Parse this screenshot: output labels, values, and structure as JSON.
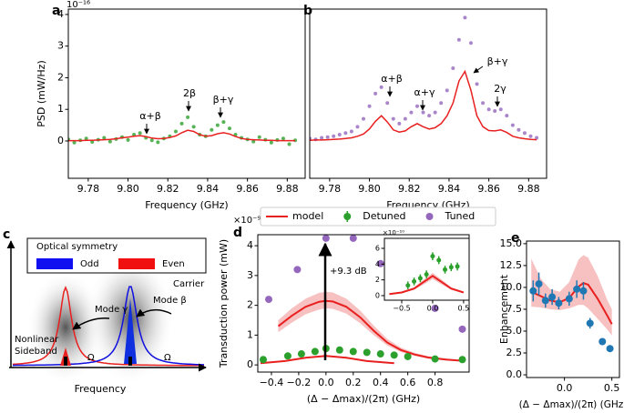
{
  "chart_data": [
    {
      "panel": "a",
      "type": "scatter",
      "xlabel": "Frequency (GHz)",
      "ylabel": "PSD (mW/Hz)",
      "offset": "10⁻¹⁶",
      "xlim": [
        9.77,
        9.889
      ],
      "ylim": [
        -1.18,
        4.17
      ],
      "xticks": [
        9.78,
        {
          "value": 9.8,
          "label": "9.80"
        },
        9.82,
        9.84,
        9.86,
        9.88
      ],
      "yticks": [
        0,
        1,
        2,
        3,
        4
      ],
      "series": [
        {
          "kind": "scatter",
          "color": "#2ca02c",
          "x": [
            9.77,
            9.773,
            9.776,
            9.779,
            9.782,
            9.785,
            9.788,
            9.791,
            9.794,
            9.797,
            9.8,
            9.803,
            9.806,
            9.809,
            9.812,
            9.815,
            9.818,
            9.821,
            9.824,
            9.827,
            9.83,
            9.833,
            9.836,
            9.839,
            9.842,
            9.845,
            9.848,
            9.851,
            9.854,
            9.857,
            9.86,
            9.863,
            9.866,
            9.869,
            9.872,
            9.875,
            9.878,
            9.881,
            9.884
          ],
          "values": [
            0.05,
            -0.05,
            0.02,
            0.08,
            -0.03,
            0.04,
            0.1,
            -0.02,
            0.06,
            0.12,
            0.03,
            0.2,
            0.25,
            0.1,
            0.02,
            -0.04,
            0.08,
            0.15,
            0.3,
            0.55,
            0.75,
            0.45,
            0.2,
            0.15,
            0.35,
            0.5,
            0.6,
            0.4,
            0.2,
            0.1,
            0.05,
            -0.02,
            0.12,
            0.04,
            -0.05,
            0.03,
            0.08,
            -0.1,
            0.02
          ]
        },
        {
          "kind": "line",
          "color": "#e8201f",
          "x": [
            9.77,
            9.773,
            9.776,
            9.779,
            9.782,
            9.785,
            9.788,
            9.791,
            9.794,
            9.797,
            9.8,
            9.803,
            9.806,
            9.809,
            9.812,
            9.815,
            9.818,
            9.821,
            9.824,
            9.827,
            9.83,
            9.833,
            9.836,
            9.839,
            9.842,
            9.845,
            9.848,
            9.851,
            9.854,
            9.857,
            9.86,
            9.863,
            9.866,
            9.869,
            9.872,
            9.875,
            9.878,
            9.881,
            9.884
          ],
          "values": [
            0.01,
            0.01,
            0.01,
            0.02,
            0.02,
            0.03,
            0.04,
            0.05,
            0.07,
            0.1,
            0.12,
            0.15,
            0.17,
            0.14,
            0.09,
            0.07,
            0.08,
            0.11,
            0.16,
            0.26,
            0.34,
            0.3,
            0.2,
            0.15,
            0.17,
            0.23,
            0.26,
            0.22,
            0.14,
            0.08,
            0.05,
            0.04,
            0.03,
            0.02,
            0.02,
            0.01,
            0.01,
            0.01,
            0.01
          ]
        }
      ],
      "annotations": [
        "α+β",
        "2β",
        "β+γ"
      ]
    },
    {
      "panel": "b",
      "type": "scatter",
      "xlabel": "Frequency (GHz)",
      "xlim": [
        9.77,
        9.889
      ],
      "ylim": [
        -1.18,
        4.17
      ],
      "xticks": [
        9.78,
        {
          "value": 9.8,
          "label": "9.80"
        },
        9.82,
        9.84,
        9.86,
        9.88
      ],
      "series": [
        {
          "kind": "scatter",
          "color": "#9467bd",
          "x": [
            9.77,
            9.773,
            9.776,
            9.779,
            9.782,
            9.785,
            9.788,
            9.791,
            9.794,
            9.797,
            9.8,
            9.803,
            9.806,
            9.809,
            9.812,
            9.815,
            9.818,
            9.821,
            9.824,
            9.827,
            9.83,
            9.833,
            9.836,
            9.839,
            9.842,
            9.845,
            9.848,
            9.851,
            9.854,
            9.857,
            9.86,
            9.863,
            9.866,
            9.869,
            9.872,
            9.875,
            9.878,
            9.881,
            9.884
          ],
          "values": [
            0.08,
            0.05,
            0.1,
            0.12,
            0.15,
            0.2,
            0.25,
            0.3,
            0.45,
            0.7,
            1.1,
            1.5,
            1.7,
            1.2,
            0.7,
            0.55,
            0.7,
            0.9,
            1.1,
            0.9,
            0.8,
            0.9,
            1.2,
            1.6,
            2.3,
            3.2,
            3.9,
            3.1,
            1.8,
            1.2,
            1.0,
            0.95,
            1.0,
            0.8,
            0.5,
            0.35,
            0.25,
            0.15,
            0.1
          ]
        },
        {
          "kind": "line",
          "color": "#e8201f",
          "x": [
            9.77,
            9.773,
            9.776,
            9.779,
            9.782,
            9.785,
            9.788,
            9.791,
            9.794,
            9.797,
            9.8,
            9.803,
            9.806,
            9.809,
            9.812,
            9.815,
            9.818,
            9.821,
            9.824,
            9.827,
            9.83,
            9.833,
            9.836,
            9.839,
            9.842,
            9.845,
            9.848,
            9.851,
            9.854,
            9.857,
            9.86,
            9.863,
            9.866,
            9.869,
            9.872,
            9.875,
            9.878,
            9.881,
            9.884
          ],
          "values": [
            0.02,
            0.03,
            0.03,
            0.04,
            0.05,
            0.06,
            0.08,
            0.1,
            0.15,
            0.22,
            0.38,
            0.62,
            0.8,
            0.6,
            0.35,
            0.28,
            0.32,
            0.45,
            0.55,
            0.45,
            0.38,
            0.42,
            0.55,
            0.8,
            1.2,
            1.9,
            2.2,
            1.6,
            0.8,
            0.45,
            0.33,
            0.32,
            0.35,
            0.27,
            0.15,
            0.1,
            0.07,
            0.05,
            0.04
          ]
        }
      ],
      "annotations": [
        "α+β",
        "α+γ",
        "β+γ",
        "2γ"
      ]
    },
    {
      "panel": "d",
      "type": "scatter",
      "xlabel": "(Δ − Δmax)/(2π) (GHz)",
      "ylabel": "Transduction power (mW)",
      "offset": "×10⁻⁹",
      "xlim": [
        -0.5,
        1.05
      ],
      "ylim": [
        -0.24,
        4.37
      ],
      "xticks": [
        {
          "value": -0.4,
          "label": "−0.4"
        },
        {
          "value": -0.2,
          "label": "−0.2"
        },
        {
          "value": 0,
          "label": "0.0"
        },
        0.2,
        0.4,
        0.6,
        0.8
      ],
      "yticks": [
        0,
        1,
        2,
        3,
        4
      ],
      "series": [
        {
          "kind": "band",
          "color": "#f4a7a7",
          "x": [
            -0.35,
            -0.25,
            -0.15,
            -0.05,
            0,
            0.05,
            0.15,
            0.25,
            0.35,
            0.45,
            0.55,
            0.65,
            0.75,
            0.88,
            1.0
          ],
          "low": [
            1.1,
            1.42,
            1.7,
            1.86,
            1.9,
            1.88,
            1.72,
            1.4,
            1.0,
            0.65,
            0.43,
            0.3,
            0.21,
            0.15,
            0.12
          ],
          "high": [
            1.5,
            1.9,
            2.22,
            2.42,
            2.45,
            2.43,
            2.22,
            1.83,
            1.32,
            0.87,
            0.58,
            0.41,
            0.29,
            0.21,
            0.17
          ]
        },
        {
          "kind": "line",
          "name": "model",
          "color": "#e8201f",
          "x": [
            -0.35,
            -0.25,
            -0.15,
            -0.05,
            0,
            0.05,
            0.15,
            0.25,
            0.35,
            0.45,
            0.55,
            0.65,
            0.75,
            0.88,
            1.0
          ],
          "values": [
            1.3,
            1.65,
            1.95,
            2.12,
            2.15,
            2.13,
            1.95,
            1.6,
            1.15,
            0.75,
            0.5,
            0.35,
            0.25,
            0.18,
            0.14
          ]
        },
        {
          "kind": "line",
          "color": "#e8201f",
          "x": [
            -0.48,
            -0.3,
            -0.15,
            0,
            0.15,
            0.3,
            0.5
          ],
          "values": [
            0.06,
            0.13,
            0.24,
            0.3,
            0.24,
            0.13,
            0.06
          ]
        },
        {
          "kind": "errorbar",
          "name": "Detuned",
          "color": "#2ca02c",
          "x": [
            -0.46,
            -0.28,
            -0.18,
            -0.08,
            0,
            0.1,
            0.2,
            0.3,
            0.4,
            0.5,
            0.6,
            0.8,
            1.0
          ],
          "values": [
            0.18,
            0.3,
            0.37,
            0.45,
            0.55,
            0.5,
            0.45,
            0.42,
            0.37,
            0.33,
            0.28,
            0.2,
            0.18
          ],
          "errors": [
            0.06,
            0.06,
            0.06,
            0.06,
            0.06,
            0.06,
            0.06,
            0.06,
            0.06,
            0.06,
            0.06,
            0.06,
            0.06
          ]
        },
        {
          "kind": "scatter",
          "name": "Tuned",
          "color": "#9467bd",
          "x": [
            -0.42,
            -0.21,
            0,
            0.2,
            0.4,
            0.6,
            0.8,
            1.0
          ],
          "values": [
            2.2,
            3.2,
            4.25,
            4.25,
            3.4,
            2.85,
            1.9,
            1.2
          ]
        }
      ],
      "annotations": [
        "+9.3 dB"
      ]
    },
    {
      "type": "scatter",
      "offset": "×10⁻¹⁰",
      "xlim": [
        -0.78,
        0.59
      ],
      "ylim": [
        -0.58,
        7.27
      ],
      "xticks": [
        {
          "value": -0.5,
          "label": "−0.5"
        },
        {
          "value": 0,
          "label": "0.0"
        },
        0.5
      ],
      "yticks": [
        0,
        2,
        4,
        6
      ],
      "series": [
        {
          "kind": "band",
          "color": "#f4a7a7",
          "x": [
            -0.7,
            -0.5,
            -0.3,
            -0.15,
            0,
            0.15,
            0.3,
            0.5
          ],
          "low": [
            0.15,
            0.32,
            0.75,
            1.4,
            2.1,
            1.4,
            0.75,
            0.32
          ],
          "high": [
            0.25,
            0.5,
            1.05,
            2.0,
            2.9,
            2.0,
            1.05,
            0.5
          ]
        },
        {
          "kind": "line",
          "color": "#e8201f",
          "x": [
            -0.7,
            -0.5,
            -0.3,
            -0.15,
            0,
            0.15,
            0.3,
            0.5
          ],
          "values": [
            0.2,
            0.4,
            0.9,
            1.7,
            2.5,
            1.7,
            0.9,
            0.4
          ]
        },
        {
          "kind": "errorbar",
          "color": "#2ca02c",
          "x": [
            -0.4,
            -0.3,
            -0.2,
            -0.1,
            0,
            0.1,
            0.2,
            0.3,
            0.4
          ],
          "values": [
            1.3,
            1.8,
            2.2,
            2.7,
            5.0,
            4.5,
            3.3,
            3.6,
            3.7
          ],
          "errors": [
            0.5,
            0.5,
            0.5,
            0.5,
            0.5,
            0.5,
            0.5,
            0.5,
            0.5
          ]
        }
      ]
    },
    {
      "panel": "e",
      "type": "scatter",
      "xlabel": "(Δ − Δmax)/(2π) (GHz)",
      "ylabel": "Enhancement",
      "xlim": [
        -0.4,
        0.58
      ],
      "ylim": [
        -0.31,
        15.3
      ],
      "xticks": [
        {
          "value": 0,
          "label": "0.0"
        },
        0.5
      ],
      "yticks": [
        {
          "value": 0,
          "label": "0.0"
        },
        2.5,
        {
          "value": 5,
          "label": "5.0"
        },
        7.5,
        {
          "value": 10,
          "label": "10.0"
        },
        12.5,
        {
          "value": 15,
          "label": "15.0"
        }
      ],
      "series": [
        {
          "kind": "band",
          "color": "#f4a7a7",
          "x": [
            -0.35,
            -0.25,
            -0.15,
            -0.05,
            0.05,
            0.15,
            0.2,
            0.25,
            0.35,
            0.45,
            0.5
          ],
          "low": [
            7.8,
            7.7,
            7.5,
            7.4,
            7.6,
            8.0,
            8.0,
            7.6,
            6.4,
            5.2,
            4.5
          ],
          "high": [
            13.3,
            11.0,
            9.8,
            9.5,
            10.6,
            13.2,
            13.7,
            13.4,
            11.3,
            8.6,
            7.5
          ]
        },
        {
          "kind": "line",
          "color": "#e8201f",
          "x": [
            -0.35,
            -0.25,
            -0.15,
            -0.05,
            0.05,
            0.15,
            0.2,
            0.25,
            0.35,
            0.45,
            0.5
          ],
          "values": [
            9.5,
            9.0,
            8.5,
            8.3,
            8.8,
            10.1,
            10.5,
            10.3,
            8.7,
            6.8,
            5.8
          ]
        },
        {
          "kind": "errorbar",
          "color": "#1f77b4",
          "x": [
            -0.33,
            -0.27,
            -0.2,
            -0.13,
            -0.06,
            0.05,
            0.13,
            0.2,
            0.27,
            0.4,
            0.48
          ],
          "values": [
            9.6,
            10.4,
            8.5,
            8.9,
            8.2,
            8.7,
            9.8,
            9.6,
            5.9,
            3.8,
            3.0
          ],
          "errors": [
            1.2,
            1.3,
            0.8,
            0.9,
            0.7,
            0.8,
            1.0,
            1.0,
            0.6,
            0.3,
            0.3
          ]
        }
      ]
    }
  ],
  "diagram": {
    "panel": "c",
    "legend_title": "Optical symmetry",
    "legend_odd": "Odd",
    "legend_even": "Even",
    "carrier": "Carrier",
    "mode_gamma": "Mode γ",
    "mode_beta": "Mode β",
    "sideband_1": "Nonlinear",
    "sideband_2": "Sideband",
    "omega_1": "Ω",
    "omega_2": "Ω",
    "xlabel": "Frequency"
  }
}
